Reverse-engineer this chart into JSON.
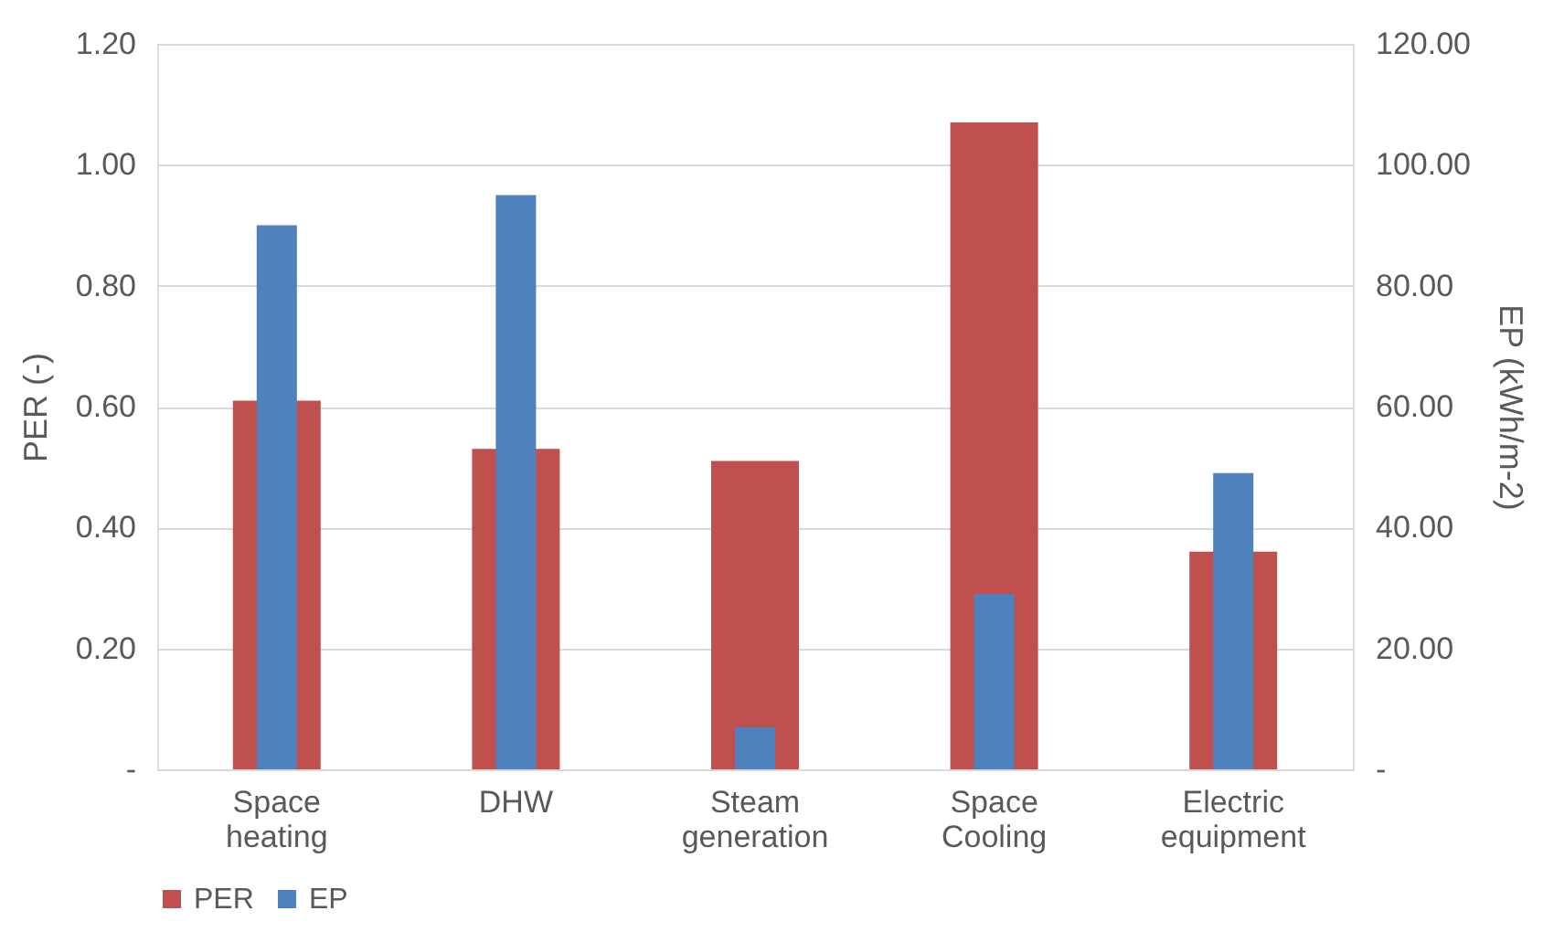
{
  "chart_data": {
    "type": "bar",
    "ylabel": "PER (-)",
    "y2label": "EP (kWh/m-2)",
    "categories": [
      "Space heating",
      "DHW",
      "Steam generation",
      "Space Cooling",
      "Electric equipment"
    ],
    "series": [
      {
        "name": "PER",
        "color": "#c0504d",
        "values": [
          0.61,
          0.53,
          0.51,
          1.07,
          0.36
        ]
      },
      {
        "name": "EP",
        "color": "#4f81bd",
        "axis": "y2",
        "values": [
          90,
          95,
          7,
          29,
          49
        ]
      }
    ],
    "ylim": [
      0,
      1.2
    ],
    "yticks": [
      {
        "value": 0,
        "label": "-"
      },
      {
        "value": 0.2,
        "label": "0.20"
      },
      {
        "value": 0.4,
        "label": "0.40"
      },
      {
        "value": 0.6,
        "label": "0.60"
      },
      {
        "value": 0.8,
        "label": "0.80"
      },
      {
        "value": 1.0,
        "label": "1.00"
      },
      {
        "value": 1.2,
        "label": "1.20"
      }
    ],
    "y2lim": [
      0,
      120
    ],
    "y2ticks": [
      {
        "value": 0,
        "label": "-"
      },
      {
        "value": 20,
        "label": "20.00"
      },
      {
        "value": 40,
        "label": "40.00"
      },
      {
        "value": 60,
        "label": "60.00"
      },
      {
        "value": 80,
        "label": "80.00"
      },
      {
        "value": 100,
        "label": "100.00"
      },
      {
        "value": 120,
        "label": "120.00"
      }
    ],
    "grid": "y",
    "legend": "bottom"
  }
}
